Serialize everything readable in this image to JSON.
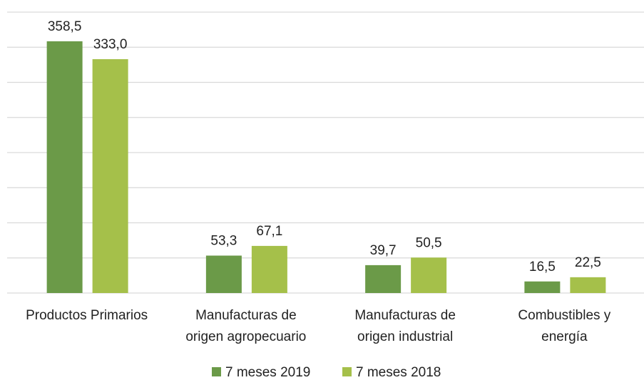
{
  "chart_data": {
    "type": "bar",
    "categories": [
      "Productos Primarios",
      "Manufacturas de\norigen agropecuario",
      "Manufacturas de\norigen industrial",
      "Combustibles y\nenergía"
    ],
    "series": [
      {
        "name": "7 meses 2019",
        "color": "#6b9a48",
        "values": [
          358.5,
          53.3,
          39.7,
          16.5
        ],
        "value_labels": [
          "358,5",
          "53,3",
          "39,7",
          "16,5"
        ]
      },
      {
        "name": "7 meses 2018",
        "color": "#a5c04a",
        "values": [
          333.0,
          67.1,
          50.5,
          22.5
        ],
        "value_labels": [
          "333,0",
          "67,1",
          "50,5",
          "22,5"
        ]
      }
    ],
    "ylim": [
      0,
      400
    ],
    "yticks": [
      0,
      50,
      100,
      150,
      200,
      250,
      300,
      350,
      400
    ],
    "grid": true,
    "legend": "bottom"
  }
}
